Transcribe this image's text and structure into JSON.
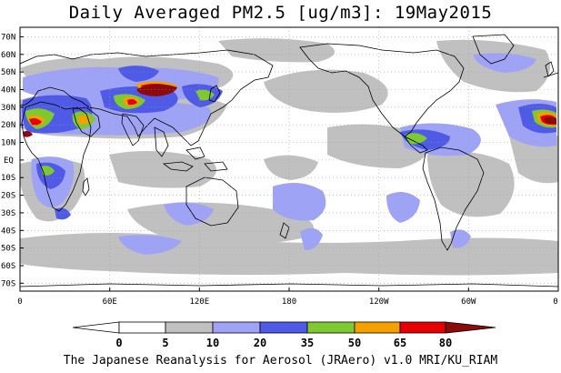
{
  "title": "Daily Averaged PM2.5 [ug/m3]: 19May2015",
  "credit": "The Japanese Reanalysis for Aerosol (JRAero) v1.0 MRI/KU_RIAM",
  "lat_labels": [
    "70N",
    "60N",
    "50N",
    "40N",
    "30N",
    "20N",
    "10N",
    "EQ",
    "10S",
    "20S",
    "30S",
    "40S",
    "50S",
    "60S",
    "70S"
  ],
  "lon_labels": [
    "0",
    "60E",
    "120E",
    "180",
    "120W",
    "60W",
    "0"
  ],
  "colorbar": {
    "thresholds": [
      "0",
      "5",
      "10",
      "20",
      "35",
      "50",
      "65",
      "80"
    ],
    "colors": [
      "#ffffff",
      "#ffffff",
      "#c0c0c0",
      "#9ea3f5",
      "#4f5ae6",
      "#7ec832",
      "#f5a000",
      "#e60000",
      "#8c0a0a"
    ]
  },
  "colors": {
    "gray": "#c0c0c0",
    "light_blue": "#9ea3f5",
    "blue": "#4f5ae6",
    "green": "#7ec832",
    "orange": "#f5a000",
    "red": "#e60000",
    "dark_red": "#8c0a0a",
    "coast": "#000000",
    "grid": "#a0a0a0"
  }
}
